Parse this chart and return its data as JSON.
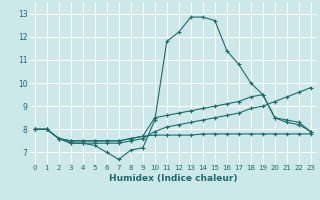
{
  "title": "",
  "xlabel": "Humidex (Indice chaleur)",
  "ylabel": "",
  "xlim": [
    -0.5,
    23.5
  ],
  "ylim": [
    6.5,
    13.5
  ],
  "yticks": [
    7,
    8,
    9,
    10,
    11,
    12,
    13
  ],
  "xticks": [
    0,
    1,
    2,
    3,
    4,
    5,
    6,
    7,
    8,
    9,
    10,
    11,
    12,
    13,
    14,
    15,
    16,
    17,
    18,
    19,
    20,
    21,
    22,
    23
  ],
  "bg_color": "#cde8e8",
  "grid_color": "#ffffff",
  "line_color": "#1a6b6b",
  "lines": [
    {
      "x": [
        0,
        1,
        2,
        3,
        4,
        5,
        6,
        7,
        8,
        9,
        10,
        11,
        12,
        13,
        14,
        15,
        16,
        17,
        18,
        19,
        20,
        21,
        22,
        23
      ],
      "y": [
        8.0,
        8.0,
        7.6,
        7.4,
        7.4,
        7.3,
        7.0,
        6.7,
        7.1,
        7.2,
        8.4,
        11.8,
        12.2,
        12.85,
        12.85,
        12.7,
        11.4,
        10.8,
        10.0,
        9.5,
        8.5,
        8.3,
        8.2,
        7.9
      ]
    },
    {
      "x": [
        0,
        1,
        2,
        3,
        4,
        5,
        6,
        7,
        8,
        9,
        10,
        11,
        12,
        13,
        14,
        15,
        16,
        17,
        18,
        19,
        20,
        21,
        22,
        23
      ],
      "y": [
        8.0,
        8.0,
        7.6,
        7.5,
        7.5,
        7.5,
        7.5,
        7.5,
        7.6,
        7.7,
        8.5,
        8.6,
        8.7,
        8.8,
        8.9,
        9.0,
        9.1,
        9.2,
        9.4,
        9.5,
        8.5,
        8.4,
        8.3,
        7.9
      ]
    },
    {
      "x": [
        0,
        1,
        2,
        3,
        4,
        5,
        6,
        7,
        8,
        9,
        10,
        11,
        12,
        13,
        14,
        15,
        16,
        17,
        18,
        19,
        20,
        21,
        22,
        23
      ],
      "y": [
        8.0,
        8.0,
        7.6,
        7.4,
        7.4,
        7.4,
        7.4,
        7.4,
        7.5,
        7.6,
        7.9,
        8.1,
        8.2,
        8.3,
        8.4,
        8.5,
        8.6,
        8.7,
        8.9,
        9.0,
        9.2,
        9.4,
        9.6,
        9.8
      ]
    },
    {
      "x": [
        0,
        1,
        2,
        3,
        4,
        5,
        6,
        7,
        8,
        9,
        10,
        11,
        12,
        13,
        14,
        15,
        16,
        17,
        18,
        19,
        20,
        21,
        22,
        23
      ],
      "y": [
        8.0,
        8.0,
        7.6,
        7.5,
        7.5,
        7.5,
        7.5,
        7.5,
        7.6,
        7.7,
        7.75,
        7.75,
        7.75,
        7.75,
        7.8,
        7.8,
        7.8,
        7.8,
        7.8,
        7.8,
        7.8,
        7.8,
        7.8,
        7.8
      ]
    }
  ]
}
